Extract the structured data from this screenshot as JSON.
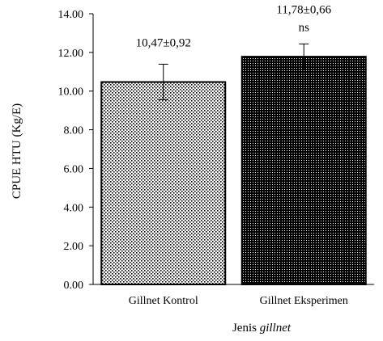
{
  "chart_data": {
    "type": "bar",
    "categories": [
      "Gillnet Kontrol",
      "Gillnet Eksperimen"
    ],
    "values": [
      10.47,
      11.78
    ],
    "errors": [
      0.92,
      0.66
    ],
    "data_labels": [
      "10,47±0,92",
      "11,78±0,66"
    ],
    "annotations": [
      "",
      "ns"
    ],
    "ylabel": "CPUE HTU (Kg/E)",
    "xlabel_prefix": "Jenis ",
    "xlabel_italic": "gillnet",
    "ylim": [
      0,
      14
    ],
    "yticks": [
      "0.00",
      "2.00",
      "4.00",
      "6.00",
      "8.00",
      "10.00",
      "12.00",
      "14.00"
    ],
    "grid": false,
    "legend": "none",
    "bar_patterns": [
      "light-dotted",
      "dense-dotted"
    ]
  }
}
